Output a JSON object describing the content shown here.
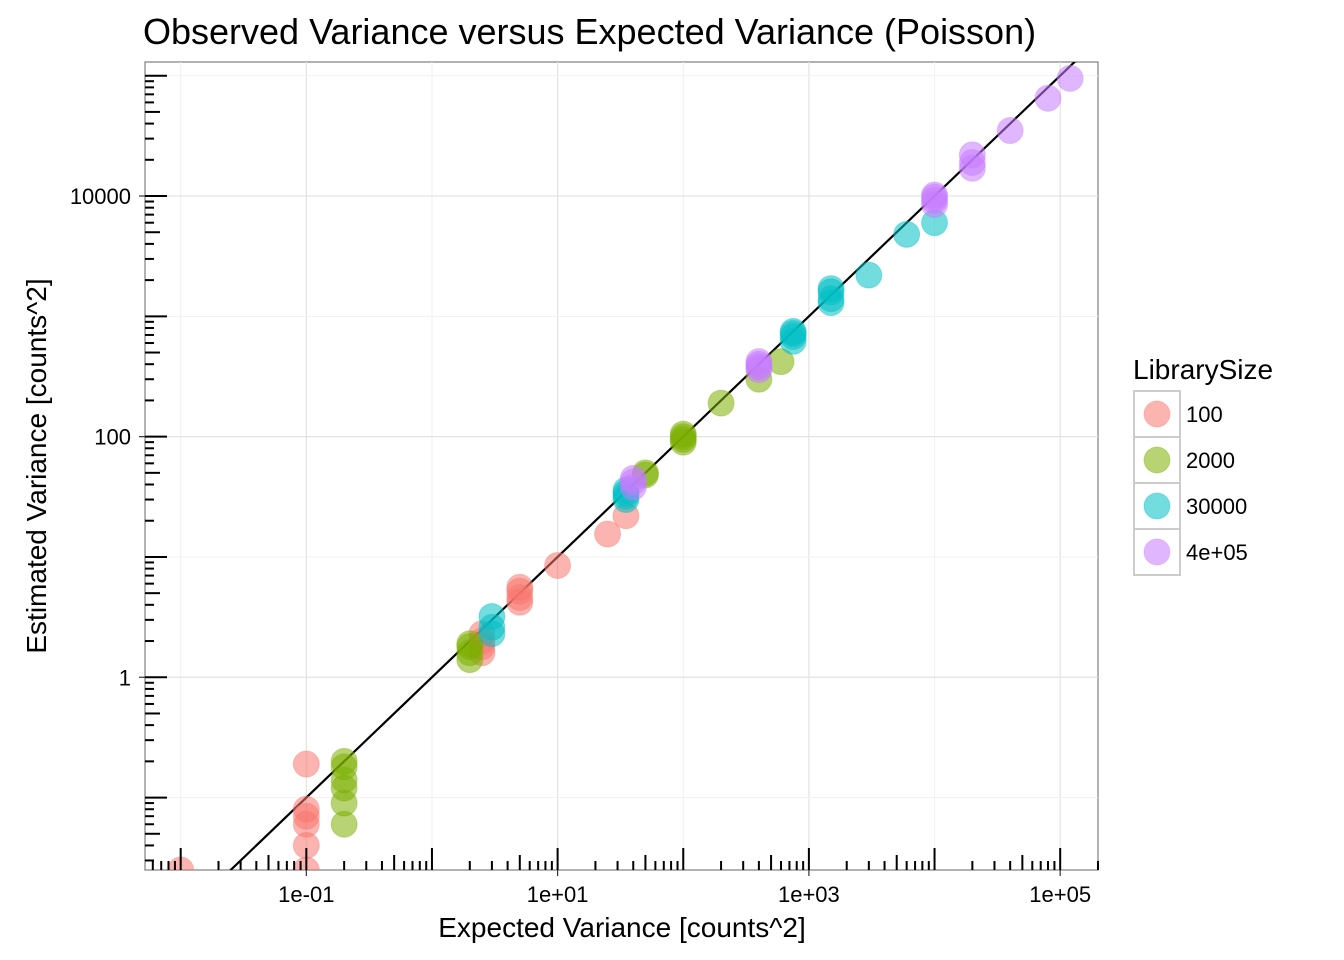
{
  "chart_data": {
    "type": "scatter",
    "title": "Observed Variance versus Expected Variance (Poisson)",
    "xlabel": "Expected Variance [counts^2]",
    "ylabel": "Estimated Variance [counts^2]",
    "x_scale": "log10",
    "y_scale": "log10",
    "xlim": [
      0.0052,
      200000
    ],
    "ylim": [
      0.025,
      130000
    ],
    "x_ticks": [
      0.1,
      10,
      1000,
      100000
    ],
    "x_tick_labels": [
      "1e-01",
      "1e+01",
      "1e+03",
      "1e+05"
    ],
    "y_ticks": [
      1,
      100,
      10000
    ],
    "y_tick_labels": [
      "1",
      "100",
      "10000"
    ],
    "grid": true,
    "reference_line": "y = x",
    "legend": {
      "title": "LibrarySize",
      "placement": "right"
    },
    "series": [
      {
        "name": "100",
        "color": "#F8766D",
        "points": [
          [
            0.01,
            0.025
          ],
          [
            0.1,
            0.19
          ],
          [
            0.1,
            0.08
          ],
          [
            0.1,
            0.07
          ],
          [
            0.1,
            0.06
          ],
          [
            0.1,
            0.04
          ],
          [
            0.1,
            0.025
          ],
          [
            2.5,
            1.6
          ],
          [
            2.5,
            2.0
          ],
          [
            2.5,
            2.3
          ],
          [
            2.5,
            1.8
          ],
          [
            5,
            4.2
          ],
          [
            5,
            4.6
          ],
          [
            5,
            5.2
          ],
          [
            5,
            5.6
          ],
          [
            10,
            8.5
          ],
          [
            25,
            15.5
          ],
          [
            35,
            22
          ]
        ]
      },
      {
        "name": "2000",
        "color": "#7CAE00",
        "points": [
          [
            0.2,
            0.06
          ],
          [
            0.2,
            0.09
          ],
          [
            0.2,
            0.12
          ],
          [
            0.2,
            0.14
          ],
          [
            0.2,
            0.18
          ],
          [
            0.2,
            0.2
          ],
          [
            2,
            1.4
          ],
          [
            2,
            1.6
          ],
          [
            2,
            1.8
          ],
          [
            2,
            1.9
          ],
          [
            50,
            48
          ],
          [
            50,
            50
          ],
          [
            100,
            90
          ],
          [
            100,
            95
          ],
          [
            100,
            100
          ],
          [
            100,
            105
          ],
          [
            200,
            190
          ],
          [
            400,
            300
          ],
          [
            600,
            420
          ]
        ]
      },
      {
        "name": "30000",
        "color": "#00BFC4",
        "points": [
          [
            3,
            2.3
          ],
          [
            3,
            2.6
          ],
          [
            3,
            3.2
          ],
          [
            35,
            30
          ],
          [
            35,
            32
          ],
          [
            35,
            34
          ],
          [
            35,
            36
          ],
          [
            750,
            620
          ],
          [
            750,
            680
          ],
          [
            750,
            720
          ],
          [
            750,
            750
          ],
          [
            1500,
            1300
          ],
          [
            1500,
            1400
          ],
          [
            1500,
            1600
          ],
          [
            1500,
            1700
          ],
          [
            3000,
            2200
          ],
          [
            6000,
            4800
          ],
          [
            10000,
            6000
          ]
        ]
      },
      {
        "name": "4e+05",
        "color": "#C77CFF",
        "points": [
          [
            40,
            38
          ],
          [
            40,
            42
          ],
          [
            40,
            45
          ],
          [
            400,
            360
          ],
          [
            400,
            380
          ],
          [
            400,
            400
          ],
          [
            400,
            420
          ],
          [
            10000,
            8500
          ],
          [
            10000,
            9200
          ],
          [
            10000,
            9800
          ],
          [
            10000,
            10200
          ],
          [
            20000,
            17000
          ],
          [
            20000,
            19000
          ],
          [
            20000,
            22000
          ],
          [
            40000,
            35000
          ],
          [
            80000,
            65000
          ],
          [
            120000,
            95000
          ]
        ]
      }
    ]
  }
}
